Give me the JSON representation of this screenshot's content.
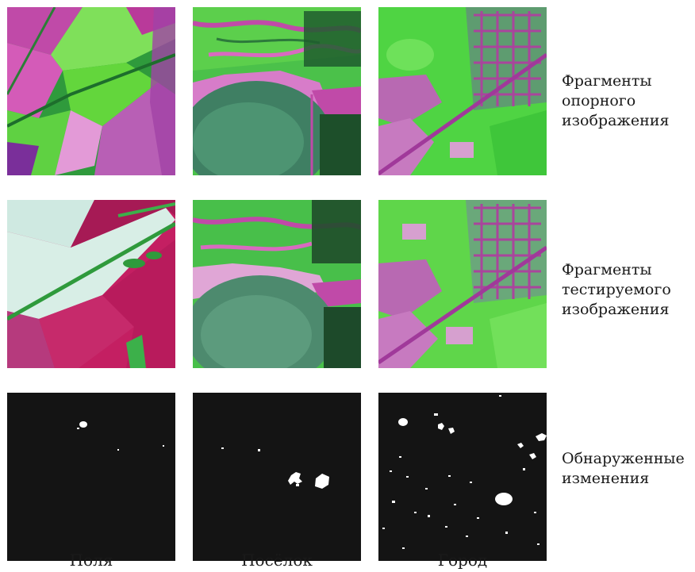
{
  "row_labels": [
    {
      "line1": "Фрагменты",
      "line2": "опорного",
      "line3": "изображения"
    },
    {
      "line1": "Фрагменты",
      "line2": "тестируемого",
      "line3": "изображения"
    },
    {
      "line1": "Обнаруженные",
      "line2": "изменения"
    }
  ],
  "column_labels": [
    "Поля",
    "Посёлок",
    "Город"
  ],
  "colors": {
    "vegetation_green": "#3fd13a",
    "bright_green": "#7fe05a",
    "dark_green": "#1f5c2e",
    "magenta": "#c04aa8",
    "light_magenta": "#e2a6d8",
    "crimson": "#c41f62",
    "pale_cyan": "#cfe9e1",
    "water_green": "#3f7f63",
    "change_mask_background": "#141414",
    "change_pixels": "#ffffff"
  }
}
